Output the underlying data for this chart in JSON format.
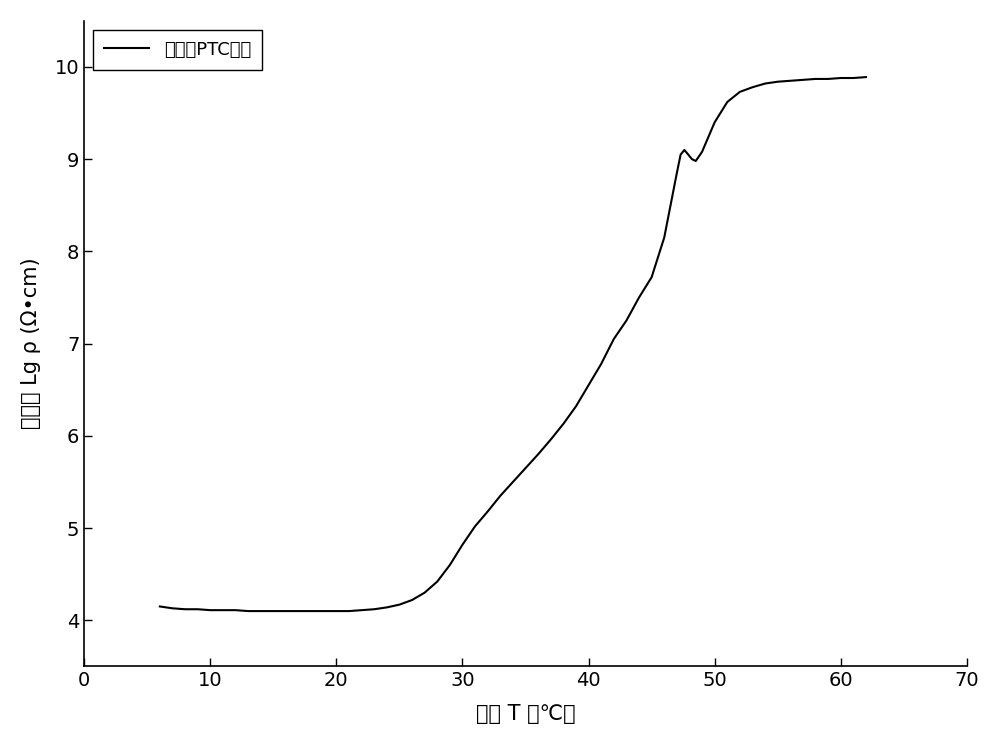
{
  "xlabel": "温度 T （℃）",
  "ylabel_chinese": "电阱率 Lg ρ (Ω•cm)",
  "legend_label": "石蜡基PTC材料",
  "xlim": [
    0,
    70
  ],
  "ylim": [
    3.5,
    10.5
  ],
  "xticks": [
    0,
    10,
    20,
    30,
    40,
    50,
    60,
    70
  ],
  "yticks": [
    4,
    5,
    6,
    7,
    8,
    9,
    10
  ],
  "line_color": "#000000",
  "line_width": 1.5,
  "background_color": "#ffffff",
  "x_data": [
    6.0,
    7.0,
    8.0,
    9.0,
    10.0,
    11.0,
    12.0,
    13.0,
    14.0,
    15.0,
    16.0,
    17.0,
    18.0,
    19.0,
    20.0,
    21.0,
    22.0,
    23.0,
    24.0,
    25.0,
    26.0,
    27.0,
    28.0,
    29.0,
    30.0,
    31.0,
    32.0,
    33.0,
    34.0,
    35.0,
    36.0,
    37.0,
    38.0,
    39.0,
    40.0,
    41.0,
    42.0,
    43.0,
    44.0,
    45.0,
    46.0,
    46.5,
    47.0,
    47.3,
    47.6,
    47.9,
    48.2,
    48.5,
    49.0,
    50.0,
    51.0,
    52.0,
    53.0,
    54.0,
    55.0,
    56.0,
    57.0,
    58.0,
    59.0,
    60.0,
    61.0,
    62.0
  ],
  "y_data": [
    4.15,
    4.13,
    4.12,
    4.12,
    4.11,
    4.11,
    4.11,
    4.1,
    4.1,
    4.1,
    4.1,
    4.1,
    4.1,
    4.1,
    4.1,
    4.1,
    4.11,
    4.12,
    4.14,
    4.17,
    4.22,
    4.3,
    4.42,
    4.6,
    4.82,
    5.02,
    5.18,
    5.35,
    5.5,
    5.65,
    5.8,
    5.96,
    6.13,
    6.32,
    6.55,
    6.78,
    7.05,
    7.25,
    7.5,
    7.72,
    8.15,
    8.5,
    8.85,
    9.05,
    9.1,
    9.05,
    9.0,
    8.98,
    9.08,
    9.4,
    9.62,
    9.73,
    9.78,
    9.82,
    9.84,
    9.85,
    9.86,
    9.87,
    9.87,
    9.88,
    9.88,
    9.89
  ]
}
